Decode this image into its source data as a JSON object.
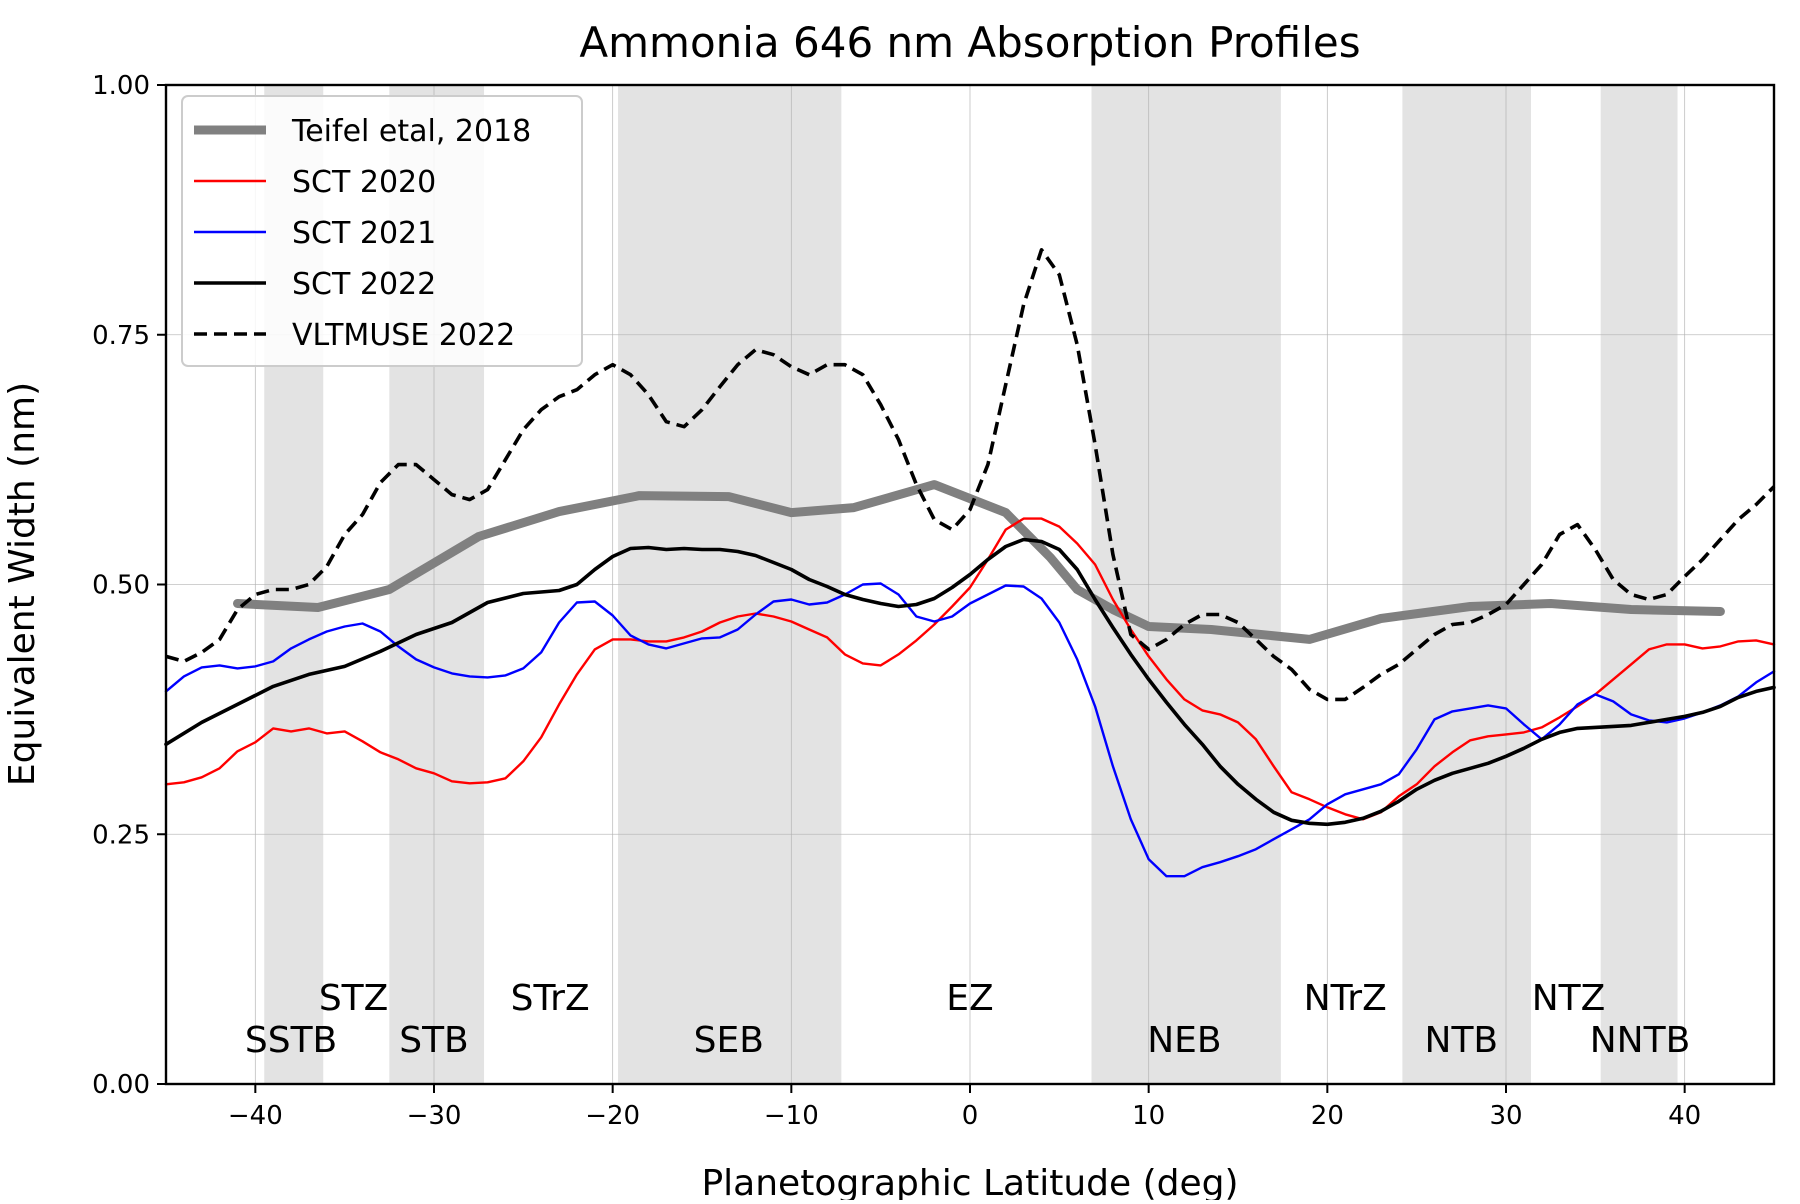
{
  "chart_data": {
    "type": "line",
    "title": "Ammonia 646 nm Absorption Profiles",
    "xlabel": "Planetographic Latitude (deg)",
    "ylabel": "Equivalent Width (nm)",
    "xlim": [
      -45,
      45
    ],
    "ylim": [
      0,
      1
    ],
    "xticks": [
      -40,
      -30,
      -20,
      -10,
      0,
      10,
      20,
      30,
      40
    ],
    "xtick_labels": [
      "−40",
      "−30",
      "−20",
      "−10",
      "0",
      "10",
      "20",
      "30",
      "40"
    ],
    "yticks": [
      0,
      0.25,
      0.5,
      0.75,
      1.0
    ],
    "ytick_labels": [
      "0.00",
      "0.25",
      "0.50",
      "0.75",
      "1.00"
    ],
    "grid": true,
    "legend_position": "top-left",
    "belts": [
      {
        "name": "SSTB",
        "from": -39.5,
        "to": -36.2
      },
      {
        "name": "STB",
        "from": -32.5,
        "to": -27.2
      },
      {
        "name": "SEB",
        "from": -19.7,
        "to": -7.2
      },
      {
        "name": "NEB",
        "from": 6.8,
        "to": 17.4
      },
      {
        "name": "NTB",
        "from": 24.2,
        "to": 31.4
      },
      {
        "name": "NNTB",
        "from": 35.3,
        "to": 39.6
      }
    ],
    "zone_labels": [
      {
        "text": "STZ",
        "x": -34.5,
        "row": "upper"
      },
      {
        "text": "STrZ",
        "x": -23.5,
        "row": "upper"
      },
      {
        "text": "EZ",
        "x": 0,
        "row": "upper"
      },
      {
        "text": "NTrZ",
        "x": 21,
        "row": "upper"
      },
      {
        "text": "NTZ",
        "x": 33.5,
        "row": "upper"
      },
      {
        "text": "SSTB",
        "x": -38,
        "row": "lower"
      },
      {
        "text": "STB",
        "x": -30,
        "row": "lower"
      },
      {
        "text": "SEB",
        "x": -13.5,
        "row": "lower"
      },
      {
        "text": "NEB",
        "x": 12,
        "row": "lower"
      },
      {
        "text": "NTB",
        "x": 27.5,
        "row": "lower"
      },
      {
        "text": "NNTB",
        "x": 37.5,
        "row": "lower"
      }
    ],
    "series": [
      {
        "name": "Teifel etal, 2018",
        "color": "#808080",
        "style": "thick",
        "x": [
          -41,
          -36.5,
          -32.5,
          -27.5,
          -23,
          -18.5,
          -13.5,
          -10,
          -6.5,
          -2,
          2,
          4.5,
          6,
          8,
          10,
          13.5,
          19,
          23,
          28,
          32.5,
          37,
          42
        ],
        "y": [
          0.481,
          0.477,
          0.495,
          0.548,
          0.573,
          0.589,
          0.588,
          0.572,
          0.577,
          0.6,
          0.572,
          0.527,
          0.495,
          0.475,
          0.458,
          0.455,
          0.445,
          0.466,
          0.478,
          0.481,
          0.475,
          0.473
        ]
      },
      {
        "name": "SCT 2020",
        "color": "#ff0000",
        "style": "thin",
        "x": [
          -45,
          -44,
          -43,
          -42,
          -41,
          -40,
          -39,
          -38,
          -37,
          -36,
          -35,
          -34,
          -33,
          -32,
          -31,
          -30,
          -29,
          -28,
          -27,
          -26,
          -25,
          -24,
          -23,
          -22,
          -21,
          -20,
          -19,
          -18,
          -17,
          -16,
          -15,
          -14,
          -13,
          -12,
          -11,
          -10,
          -9,
          -8,
          -7,
          -6,
          -5,
          -4,
          -3,
          -2,
          -1,
          0,
          1,
          2,
          3,
          4,
          5,
          6,
          7,
          8,
          9,
          10,
          11,
          12,
          13,
          14,
          15,
          16,
          17,
          18,
          19,
          20,
          21,
          22,
          23,
          24,
          25,
          26,
          27,
          28,
          29,
          30,
          31,
          32,
          33,
          34,
          35,
          36,
          37,
          38,
          39,
          40,
          41,
          42,
          43,
          44,
          45
        ],
        "y": [
          0.3,
          0.302,
          0.307,
          0.316,
          0.333,
          0.342,
          0.356,
          0.353,
          0.356,
          0.351,
          0.353,
          0.343,
          0.332,
          0.325,
          0.316,
          0.311,
          0.303,
          0.301,
          0.302,
          0.306,
          0.323,
          0.347,
          0.38,
          0.41,
          0.435,
          0.445,
          0.445,
          0.443,
          0.443,
          0.447,
          0.453,
          0.462,
          0.468,
          0.471,
          0.468,
          0.463,
          0.455,
          0.447,
          0.43,
          0.421,
          0.419,
          0.43,
          0.444,
          0.46,
          0.478,
          0.497,
          0.525,
          0.555,
          0.566,
          0.566,
          0.558,
          0.541,
          0.52,
          0.485,
          0.455,
          0.428,
          0.405,
          0.385,
          0.374,
          0.37,
          0.362,
          0.345,
          0.318,
          0.292,
          0.285,
          0.277,
          0.27,
          0.265,
          0.272,
          0.288,
          0.3,
          0.318,
          0.332,
          0.344,
          0.348,
          0.35,
          0.352,
          0.357,
          0.367,
          0.378,
          0.39,
          0.405,
          0.42,
          0.435,
          0.44,
          0.44,
          0.436,
          0.438,
          0.443,
          0.444,
          0.44
        ]
      },
      {
        "name": "SCT 2021",
        "color": "#0000ff",
        "style": "thin",
        "x": [
          -45,
          -44,
          -43,
          -42,
          -41,
          -40,
          -39,
          -38,
          -37,
          -36,
          -35,
          -34,
          -33,
          -32,
          -31,
          -30,
          -29,
          -28,
          -27,
          -26,
          -25,
          -24,
          -23,
          -22,
          -21,
          -20,
          -19,
          -18,
          -17,
          -16,
          -15,
          -14,
          -13,
          -12,
          -11,
          -10,
          -9,
          -8,
          -7,
          -6,
          -5,
          -4,
          -3,
          -2,
          -1,
          0,
          1,
          2,
          3,
          4,
          5,
          6,
          7,
          8,
          9,
          10,
          11,
          12,
          13,
          14,
          15,
          16,
          17,
          18,
          19,
          20,
          21,
          22,
          23,
          24,
          25,
          26,
          27,
          28,
          29,
          30,
          31,
          32,
          33,
          34,
          35,
          36,
          37,
          38,
          39,
          40,
          41,
          42,
          43,
          44,
          45
        ],
        "y": [
          0.393,
          0.408,
          0.417,
          0.419,
          0.416,
          0.418,
          0.423,
          0.436,
          0.445,
          0.453,
          0.458,
          0.461,
          0.453,
          0.438,
          0.425,
          0.417,
          0.411,
          0.408,
          0.407,
          0.409,
          0.416,
          0.432,
          0.462,
          0.482,
          0.483,
          0.469,
          0.449,
          0.44,
          0.436,
          0.441,
          0.446,
          0.447,
          0.455,
          0.47,
          0.483,
          0.485,
          0.48,
          0.482,
          0.49,
          0.5,
          0.501,
          0.49,
          0.468,
          0.463,
          0.468,
          0.481,
          0.49,
          0.499,
          0.498,
          0.486,
          0.462,
          0.425,
          0.378,
          0.318,
          0.265,
          0.225,
          0.208,
          0.208,
          0.217,
          0.222,
          0.228,
          0.235,
          0.245,
          0.255,
          0.265,
          0.28,
          0.29,
          0.295,
          0.3,
          0.31,
          0.335,
          0.365,
          0.373,
          0.376,
          0.379,
          0.376,
          0.36,
          0.345,
          0.36,
          0.38,
          0.39,
          0.383,
          0.37,
          0.364,
          0.362,
          0.366,
          0.372,
          0.379,
          0.388,
          0.402,
          0.413
        ]
      },
      {
        "name": "SCT 2022",
        "color": "#000000",
        "style": "medium",
        "x": [
          -45,
          -43,
          -41,
          -39,
          -37,
          -35,
          -33,
          -31,
          -29,
          -27,
          -25,
          -23,
          -22,
          -21,
          -20,
          -19,
          -18,
          -17,
          -16,
          -15,
          -14,
          -13,
          -12,
          -11,
          -10,
          -9,
          -8,
          -7,
          -6,
          -5,
          -4,
          -3,
          -2,
          -1,
          0,
          1,
          2,
          3,
          4,
          5,
          6,
          7,
          8,
          9,
          10,
          11,
          12,
          13,
          14,
          15,
          16,
          17,
          18,
          19,
          20,
          21,
          22,
          23,
          24,
          25,
          26,
          27,
          28,
          29,
          30,
          31,
          32,
          33,
          34,
          35,
          36,
          37,
          38,
          39,
          40,
          41,
          42,
          43,
          44,
          45
        ],
        "y": [
          0.34,
          0.362,
          0.38,
          0.398,
          0.41,
          0.418,
          0.433,
          0.45,
          0.462,
          0.482,
          0.491,
          0.494,
          0.5,
          0.515,
          0.528,
          0.536,
          0.537,
          0.535,
          0.536,
          0.535,
          0.535,
          0.533,
          0.529,
          0.522,
          0.515,
          0.505,
          0.498,
          0.49,
          0.485,
          0.481,
          0.478,
          0.48,
          0.486,
          0.497,
          0.51,
          0.525,
          0.538,
          0.545,
          0.543,
          0.535,
          0.515,
          0.485,
          0.457,
          0.43,
          0.405,
          0.382,
          0.36,
          0.34,
          0.318,
          0.3,
          0.285,
          0.272,
          0.264,
          0.261,
          0.26,
          0.262,
          0.266,
          0.273,
          0.283,
          0.295,
          0.304,
          0.311,
          0.316,
          0.321,
          0.328,
          0.336,
          0.345,
          0.352,
          0.356,
          0.357,
          0.358,
          0.359,
          0.362,
          0.365,
          0.368,
          0.372,
          0.378,
          0.387,
          0.393,
          0.397
        ]
      },
      {
        "name": "VLTMUSE 2022",
        "color": "#000000",
        "style": "dashed",
        "x": [
          -45,
          -44,
          -43,
          -42,
          -41,
          -40,
          -39,
          -38,
          -37,
          -36,
          -35,
          -34,
          -33,
          -32,
          -31,
          -30,
          -29,
          -28,
          -27,
          -26,
          -25,
          -24,
          -23,
          -22,
          -21,
          -20,
          -19,
          -18,
          -17,
          -16,
          -15,
          -14,
          -13,
          -12,
          -11,
          -10,
          -9,
          -8,
          -7,
          -6,
          -5,
          -4,
          -3,
          -2,
          -1,
          0,
          1,
          2,
          3,
          4,
          5,
          6,
          7,
          8,
          9,
          10,
          11,
          12,
          13,
          14,
          15,
          16,
          17,
          18,
          19,
          20,
          21,
          22,
          23,
          24,
          25,
          26,
          27,
          28,
          29,
          30,
          31,
          32,
          33,
          34,
          35,
          36,
          37,
          38,
          39,
          40,
          41,
          42,
          43,
          44,
          45
        ],
        "y": [
          0.428,
          0.423,
          0.432,
          0.445,
          0.475,
          0.49,
          0.495,
          0.495,
          0.5,
          0.518,
          0.55,
          0.57,
          0.602,
          0.62,
          0.62,
          0.605,
          0.59,
          0.585,
          0.595,
          0.625,
          0.655,
          0.675,
          0.688,
          0.695,
          0.71,
          0.72,
          0.71,
          0.69,
          0.663,
          0.658,
          0.675,
          0.698,
          0.72,
          0.735,
          0.73,
          0.718,
          0.71,
          0.72,
          0.72,
          0.71,
          0.68,
          0.645,
          0.6,
          0.565,
          0.555,
          0.575,
          0.62,
          0.7,
          0.78,
          0.835,
          0.81,
          0.74,
          0.64,
          0.53,
          0.45,
          0.435,
          0.445,
          0.46,
          0.47,
          0.47,
          0.462,
          0.445,
          0.428,
          0.415,
          0.395,
          0.385,
          0.385,
          0.397,
          0.41,
          0.42,
          0.435,
          0.45,
          0.46,
          0.462,
          0.47,
          0.48,
          0.5,
          0.52,
          0.55,
          0.56,
          0.535,
          0.505,
          0.49,
          0.485,
          0.49,
          0.508,
          0.525,
          0.545,
          0.565,
          0.58,
          0.598
        ]
      }
    ]
  }
}
